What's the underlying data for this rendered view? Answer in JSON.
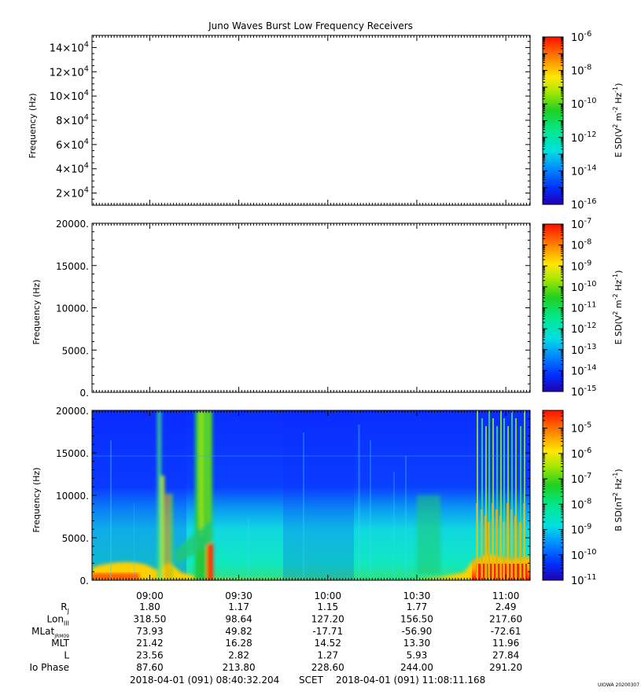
{
  "title": "Juno Waves Burst Low Frequency Receivers",
  "footer": {
    "start": "2018-04-01 (091) 08:40:32.204",
    "scet": "SCET",
    "end": "2018-04-01 (091) 11:08:11.168",
    "stamp": "UIOWA 20200307"
  },
  "ephemeris": {
    "labels": [
      "R",
      "Lon",
      "MLat",
      "MLT",
      "L",
      "Io Phase"
    ],
    "label_subscripts": [
      "J",
      "III",
      "JRM09",
      "",
      "",
      ""
    ],
    "rows": [
      [
        "1.80",
        "1.17",
        "1.15",
        "1.77",
        "2.49"
      ],
      [
        "318.50",
        "98.64",
        "127.20",
        "156.50",
        "217.60"
      ],
      [
        "73.93",
        "49.82",
        "-17.71",
        "-56.90",
        "-72.61"
      ],
      [
        "21.42",
        "16.28",
        "14.52",
        "13.30",
        "11.96"
      ],
      [
        "23.56",
        "2.82",
        "1.27",
        "5.93",
        "27.84"
      ],
      [
        "87.60",
        "213.80",
        "228.60",
        "244.00",
        "291.20"
      ]
    ]
  },
  "chart_data": [
    {
      "type": "heatmap",
      "panel": "E-field high band",
      "ylabel": "Frequency (Hz)",
      "yticks": [
        {
          "base": "2×10",
          "exp": "4",
          "value": 20000
        },
        {
          "base": "4×10",
          "exp": "4",
          "value": 40000
        },
        {
          "base": "6×10",
          "exp": "4",
          "value": 60000
        },
        {
          "base": "8×10",
          "exp": "4",
          "value": 80000
        },
        {
          "base": "10×10",
          "exp": "4",
          "value": 100000
        },
        {
          "base": "12×10",
          "exp": "4",
          "value": 120000
        },
        {
          "base": "14×10",
          "exp": "4",
          "value": 140000
        }
      ],
      "ylim": [
        10000,
        150000
      ],
      "xticks": [
        "09:00",
        "09:30",
        "10:00",
        "10:30",
        "11:00"
      ],
      "xlim_time": [
        "08:40:32",
        "11:08:11"
      ],
      "data": "blank (no data)",
      "colorbar": {
        "label_parts": [
          "E SD(V",
          "2",
          " m",
          "-2",
          " Hz",
          "-1",
          ")"
        ],
        "log_range": [
          -16,
          -6
        ],
        "ticks": [
          {
            "base": "10",
            "exp": "-6"
          },
          {
            "base": "10",
            "exp": "-8"
          },
          {
            "base": "10",
            "exp": "-10"
          },
          {
            "base": "10",
            "exp": "-12"
          },
          {
            "base": "10",
            "exp": "-14"
          },
          {
            "base": "10",
            "exp": "-16"
          }
        ]
      }
    },
    {
      "type": "heatmap",
      "panel": "E-field low band",
      "ylabel": "Frequency (Hz)",
      "yticks": [
        "0.",
        "5000.",
        "10000.",
        "15000.",
        "20000."
      ],
      "ylim": [
        0,
        20000
      ],
      "xticks": [
        "09:00",
        "09:30",
        "10:00",
        "10:30",
        "11:00"
      ],
      "data": "blank (no data)",
      "colorbar": {
        "label_parts": [
          "E SD(V",
          "2",
          " m",
          "-2",
          " Hz",
          "-1",
          ")"
        ],
        "log_range": [
          -15,
          -7
        ],
        "ticks": [
          {
            "base": "10",
            "exp": "-7"
          },
          {
            "base": "10",
            "exp": "-8"
          },
          {
            "base": "10",
            "exp": "-9"
          },
          {
            "base": "10",
            "exp": "-10"
          },
          {
            "base": "10",
            "exp": "-11"
          },
          {
            "base": "10",
            "exp": "-12"
          },
          {
            "base": "10",
            "exp": "-13"
          },
          {
            "base": "10",
            "exp": "-14"
          },
          {
            "base": "10",
            "exp": "-15"
          }
        ]
      }
    },
    {
      "type": "heatmap",
      "panel": "B-field spectrogram",
      "ylabel": "Frequency (Hz)",
      "yticks": [
        "0.",
        "5000.",
        "10000.",
        "15000.",
        "20000."
      ],
      "ylim": [
        0,
        20000
      ],
      "xticks": [
        "09:00",
        "09:30",
        "10:00",
        "10:30",
        "11:00"
      ],
      "colorbar": {
        "label_parts": [
          "B SD(nT",
          "2",
          " Hz",
          "-1",
          ")"
        ],
        "log_range": [
          -11,
          -4.3
        ],
        "ticks": [
          {
            "base": "10",
            "exp": "-5"
          },
          {
            "base": "10",
            "exp": "-6"
          },
          {
            "base": "10",
            "exp": "-7"
          },
          {
            "base": "10",
            "exp": "-8"
          },
          {
            "base": "10",
            "exp": "-9"
          },
          {
            "base": "10",
            "exp": "-10"
          },
          {
            "base": "10",
            "exp": "-11"
          }
        ]
      },
      "features": [
        {
          "desc": "background",
          "level_log": -10.4
        },
        {
          "desc": "low-frequency band 0–8000 Hz",
          "level_log": -8.9
        },
        {
          "desc": "intense emission near 11:00",
          "level_log": -4.6
        }
      ]
    }
  ]
}
